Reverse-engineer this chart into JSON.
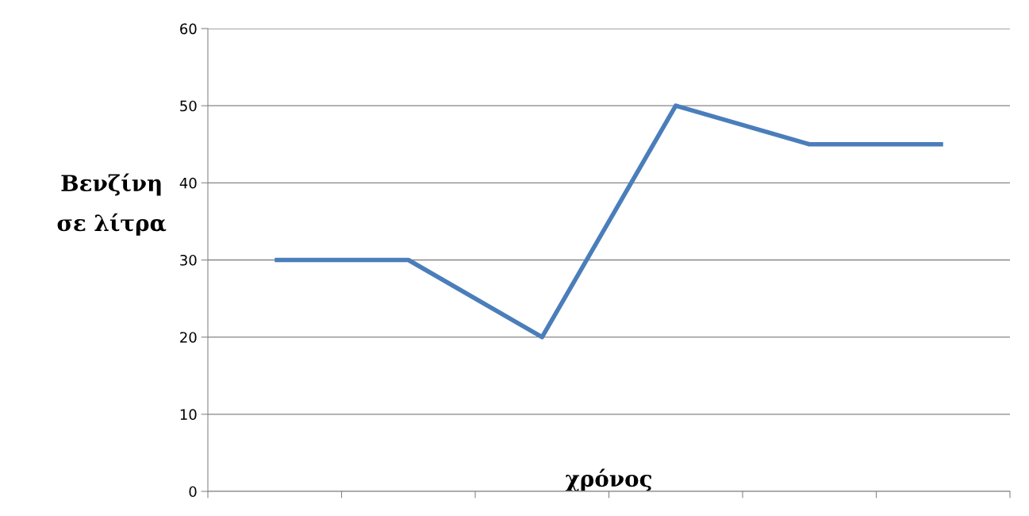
{
  "chart_data": {
    "type": "line",
    "xlabel": "χρόνος",
    "ylabel": "Βενζίνη\nσε λίτρα",
    "categories": [
      null,
      null,
      null,
      null,
      null,
      null
    ],
    "series": [
      {
        "color": "#4a7ebb",
        "values": [
          30,
          30,
          20,
          50,
          45,
          45
        ]
      }
    ],
    "ylim": [
      0,
      60
    ],
    "yticks": [
      0,
      10,
      20,
      30,
      40,
      50,
      60
    ],
    "grid": "y",
    "marker": "none",
    "line_style": "solid",
    "legend": false
  }
}
